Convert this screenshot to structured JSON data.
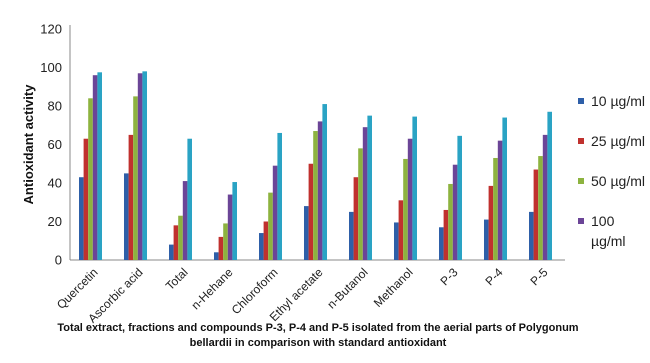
{
  "chart_data": {
    "type": "bar",
    "ylabel": "Antioxidant activity",
    "xlabel_lines": [
      "Total extract, fractions and compounds P-3, P-4 and P-5 isolated from the aerial parts of Polygonum",
      "bellardii in comparison with standard antioxidant"
    ],
    "ylim": [
      0,
      120
    ],
    "yticks": [
      0,
      20,
      40,
      60,
      80,
      100,
      120
    ],
    "grid": false,
    "legend_position": "right",
    "categories": [
      "Quercetin",
      "Ascorbic acid",
      "Total",
      "n-Hehane",
      "Chloroform",
      "Ethyl acetate",
      "n-Butanol",
      "Methanol",
      "P-3",
      "P-4",
      "P-5"
    ],
    "series": [
      {
        "name": "10 µg/ml",
        "legend_lines": [
          "10 µg/ml"
        ],
        "color": "#2E5FA8",
        "values": [
          43,
          45,
          8,
          4,
          14,
          28,
          25,
          19.5,
          17,
          21,
          25
        ]
      },
      {
        "name": "25 µg/ml",
        "legend_lines": [
          "25 µg/ml"
        ],
        "color": "#C0312E",
        "values": [
          63,
          65,
          18,
          12,
          20,
          50,
          43,
          31,
          26,
          38.5,
          47
        ]
      },
      {
        "name": "50 µg/ml",
        "legend_lines": [
          "50 µg/ml"
        ],
        "color": "#8DB33F",
        "values": [
          84,
          85,
          23,
          19,
          35,
          67,
          58,
          52.5,
          39.5,
          53,
          54
        ]
      },
      {
        "name": "100 µg/ml",
        "legend_lines": [
          "100",
          "µg/ml"
        ],
        "color": "#6B4597",
        "values": [
          96,
          97,
          41,
          34,
          49,
          72,
          69,
          63,
          49.5,
          62,
          65
        ]
      },
      {
        "name": "",
        "legend_lines": [],
        "color": "#2AA3C4",
        "values": [
          97.5,
          98,
          63,
          40.5,
          66,
          81,
          75,
          74.5,
          64.5,
          74,
          77
        ]
      }
    ]
  }
}
